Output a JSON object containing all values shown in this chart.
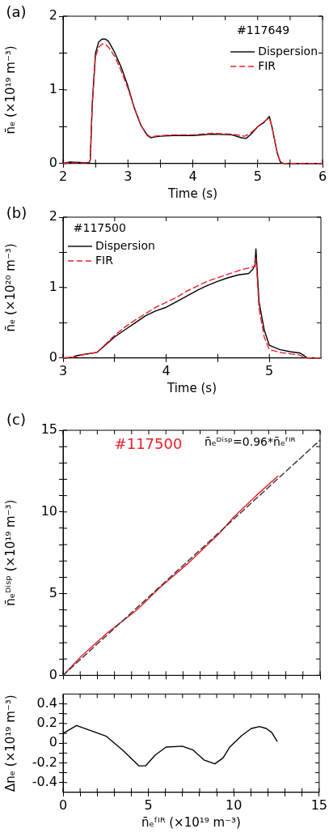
{
  "chart_data": [
    {
      "type": "line",
      "xlabel": "Time (s)",
      "ylabel": "n̄ₑ (×10¹⁹ m⁻³)",
      "annotations": [
        "(a)",
        "#117649"
      ],
      "xlim": [
        2,
        6
      ],
      "ylim": [
        0,
        2
      ],
      "xticks": [
        2,
        {
          "value": 2.5,
          "label": null
        },
        3,
        {
          "value": 3.5,
          "label": null
        },
        4,
        {
          "value": 4.5,
          "label": null
        },
        5,
        {
          "value": 5.5,
          "label": null
        },
        6
      ],
      "yticks": [
        0,
        {
          "value": 0.5,
          "label": null
        },
        1,
        {
          "value": 1.5,
          "label": null
        },
        2
      ],
      "grid": false,
      "legend": "top right",
      "series": [
        {
          "name": "Dispersion",
          "color": "#000000",
          "line_style": "solid",
          "x": [
            2.0,
            2.1,
            2.4,
            2.42,
            2.45,
            2.5,
            2.55,
            2.6,
            2.65,
            2.7,
            2.8,
            2.9,
            3.0,
            3.1,
            3.2,
            3.3,
            3.35,
            3.4,
            3.5,
            3.7,
            4.0,
            4.3,
            4.6,
            4.75,
            4.82,
            4.9,
            5.0,
            5.1,
            5.18,
            5.22,
            5.3,
            5.35,
            5.4,
            6.0
          ],
          "values": [
            0,
            0.02,
            0.01,
            0.05,
            0.8,
            1.5,
            1.65,
            1.69,
            1.69,
            1.66,
            1.5,
            1.3,
            1.05,
            0.75,
            0.52,
            0.38,
            0.35,
            0.36,
            0.37,
            0.38,
            0.38,
            0.4,
            0.39,
            0.35,
            0.34,
            0.4,
            0.5,
            0.56,
            0.64,
            0.5,
            0.15,
            0.02,
            0,
            0
          ]
        },
        {
          "name": "FIR",
          "color": "#ee1c25",
          "line_style": "dashed",
          "x": [
            2.0,
            2.1,
            2.4,
            2.42,
            2.45,
            2.5,
            2.55,
            2.6,
            2.65,
            2.7,
            2.8,
            2.9,
            3.0,
            3.1,
            3.2,
            3.3,
            3.35,
            3.4,
            3.5,
            3.7,
            4.0,
            4.3,
            4.6,
            4.8,
            4.9,
            5.0,
            5.1,
            5.18,
            5.22,
            5.3,
            5.35,
            5.4,
            6.0
          ],
          "values": [
            0,
            0.01,
            0.01,
            0.05,
            0.8,
            1.45,
            1.58,
            1.62,
            1.62,
            1.58,
            1.45,
            1.25,
            1.02,
            0.75,
            0.52,
            0.39,
            0.36,
            0.37,
            0.38,
            0.39,
            0.39,
            0.41,
            0.4,
            0.37,
            0.42,
            0.5,
            0.57,
            0.62,
            0.5,
            0.15,
            0.02,
            0,
            0
          ]
        }
      ]
    },
    {
      "type": "line",
      "xlabel": "Time (s)",
      "ylabel": "n̄ₑ (×10²⁰ m⁻³)",
      "annotations": [
        "(b)",
        "#117500"
      ],
      "xlim": [
        3,
        5.5
      ],
      "ylim": [
        0,
        2
      ],
      "xticks": [
        3,
        {
          "value": 3.5,
          "label": null
        },
        4,
        {
          "value": 4.5,
          "label": null
        },
        5
      ],
      "yticks": [
        0,
        {
          "value": 0.5,
          "label": null
        },
        1,
        {
          "value": 1.5,
          "label": null
        },
        2
      ],
      "grid": false,
      "legend": "top left",
      "series": [
        {
          "name": "Dispersion",
          "color": "#000000",
          "line_style": "solid",
          "x": [
            3.0,
            3.1,
            3.12,
            3.2,
            3.33,
            3.4,
            3.5,
            3.6,
            3.7,
            3.8,
            3.9,
            4.0,
            4.1,
            4.2,
            4.3,
            4.4,
            4.5,
            4.6,
            4.7,
            4.8,
            4.84,
            4.86,
            4.87,
            4.88,
            4.9,
            4.95,
            5.0,
            5.1,
            5.2,
            5.3,
            5.33,
            5.37,
            5.5
          ],
          "values": [
            0,
            0.01,
            0.03,
            0.05,
            0.08,
            0.17,
            0.3,
            0.4,
            0.5,
            0.6,
            0.67,
            0.72,
            0.8,
            0.88,
            0.96,
            1.03,
            1.09,
            1.14,
            1.18,
            1.2,
            1.26,
            1.32,
            1.55,
            1.3,
            0.8,
            0.4,
            0.18,
            0.12,
            0.09,
            0.07,
            0.04,
            0,
            0
          ]
        },
        {
          "name": "FIR",
          "color": "#ee1c25",
          "line_style": "dashed",
          "x": [
            3.0,
            3.1,
            3.2,
            3.33,
            3.4,
            3.5,
            3.6,
            3.7,
            3.8,
            3.9,
            4.0,
            4.1,
            4.2,
            4.3,
            4.4,
            4.5,
            4.6,
            4.7,
            4.8,
            4.86,
            4.87,
            4.88,
            4.9,
            4.95,
            5.0,
            5.1,
            5.2,
            5.3,
            5.33,
            5.37,
            5.5
          ],
          "values": [
            0,
            0.01,
            0.05,
            0.08,
            0.18,
            0.32,
            0.44,
            0.54,
            0.63,
            0.72,
            0.79,
            0.86,
            0.95,
            1.02,
            1.09,
            1.14,
            1.19,
            1.24,
            1.28,
            1.3,
            1.42,
            1.2,
            0.7,
            0.3,
            0.12,
            0.08,
            0.06,
            0.04,
            0.01,
            0,
            0
          ]
        }
      ]
    },
    {
      "type": "line",
      "ylabel": "n̄ₑᴰⁱˢᵖ (×10¹⁹ m⁻³)",
      "annotations": [
        "(c)",
        "#117500",
        "n̄ₑᴰⁱˢᵖ=0.96*n̄ₑᶠᴵᴿ"
      ],
      "xlim": [
        0,
        15
      ],
      "ylim": [
        0,
        15
      ],
      "xticks": [
        0,
        {
          "value": 1,
          "label": null
        },
        {
          "value": 2,
          "label": null
        },
        {
          "value": 3,
          "label": null
        },
        {
          "value": 4,
          "label": null
        },
        5,
        {
          "value": 6,
          "label": null
        },
        {
          "value": 7,
          "label": null
        },
        {
          "value": 8,
          "label": null
        },
        {
          "value": 9,
          "label": null
        },
        10,
        {
          "value": 11,
          "label": null
        },
        {
          "value": 12,
          "label": null
        },
        {
          "value": 13,
          "label": null
        },
        {
          "value": 14,
          "label": null
        },
        15
      ],
      "yticks": [
        0,
        {
          "value": 1,
          "label": null
        },
        {
          "value": 2,
          "label": null
        },
        {
          "value": 3,
          "label": null
        },
        {
          "value": 4,
          "label": null
        },
        5,
        {
          "value": 6,
          "label": null
        },
        {
          "value": 7,
          "label": null
        },
        {
          "value": 8,
          "label": null
        },
        {
          "value": 9,
          "label": null
        },
        10,
        {
          "value": 11,
          "label": null
        },
        {
          "value": 12,
          "label": null
        },
        {
          "value": 13,
          "label": null
        },
        {
          "value": 14,
          "label": null
        },
        15
      ],
      "tick_labels": "y",
      "grid": false,
      "series": [
        {
          "color": "#ee1c25",
          "line_style": "solid",
          "x": [
            0,
            1.11,
            2.54,
            4.29,
            5.71,
            7.3,
            9.05,
            10.0,
            11.27,
            12.54
          ],
          "values": [
            0,
            1.21,
            2.56,
            3.99,
            5.43,
            6.86,
            8.61,
            9.73,
            11.0,
            12.2
          ]
        },
        {
          "color": "#333333",
          "line_style": "dashed",
          "x": [
            0,
            15
          ],
          "values": [
            0,
            14.4
          ]
        }
      ]
    },
    {
      "type": "line",
      "xlabel": "n̄ₑᶠᴵᴿ (×10¹⁹ m⁻³)",
      "ylabel": "Δnₑ (×10¹⁹ m⁻³)",
      "xlim": [
        0,
        15
      ],
      "ylim": [
        -0.5,
        0.5
      ],
      "xticks": [
        0,
        {
          "value": 1,
          "label": null
        },
        {
          "value": 2,
          "label": null
        },
        {
          "value": 3,
          "label": null
        },
        {
          "value": 4,
          "label": null
        },
        5,
        {
          "value": 6,
          "label": null
        },
        {
          "value": 7,
          "label": null
        },
        {
          "value": 8,
          "label": null
        },
        {
          "value": 9,
          "label": null
        },
        10,
        {
          "value": 11,
          "label": null
        },
        {
          "value": 12,
          "label": null
        },
        {
          "value": 13,
          "label": null
        },
        {
          "value": 14,
          "label": null
        },
        15
      ],
      "yticks": [
        {
          "value": -0.4,
          "label": "-0.4"
        },
        {
          "value": -0.3,
          "label": null
        },
        {
          "value": -0.2,
          "label": "-0.2"
        },
        {
          "value": -0.1,
          "label": null
        },
        0,
        {
          "value": 0.1,
          "label": null
        },
        {
          "value": 0.2,
          "label": "0.2"
        },
        {
          "value": 0.3,
          "label": null
        },
        {
          "value": 0.4,
          "label": "0.4"
        }
      ],
      "grid": false,
      "series": [
        {
          "color": "#000000",
          "line_style": "solid",
          "x": [
            0,
            0.79,
            1.75,
            2.54,
            3.49,
            4.44,
            4.84,
            5.4,
            6.03,
            6.98,
            7.62,
            8.25,
            8.89,
            9.37,
            9.76,
            10.48,
            11.03,
            11.51,
            11.9,
            12.22,
            12.54
          ],
          "values": [
            0.1,
            0.18,
            0.12,
            0.07,
            -0.07,
            -0.23,
            -0.23,
            -0.12,
            -0.04,
            -0.03,
            -0.07,
            -0.17,
            -0.21,
            -0.15,
            -0.04,
            0.08,
            0.15,
            0.17,
            0.15,
            0.11,
            0.02
          ]
        }
      ]
    }
  ]
}
